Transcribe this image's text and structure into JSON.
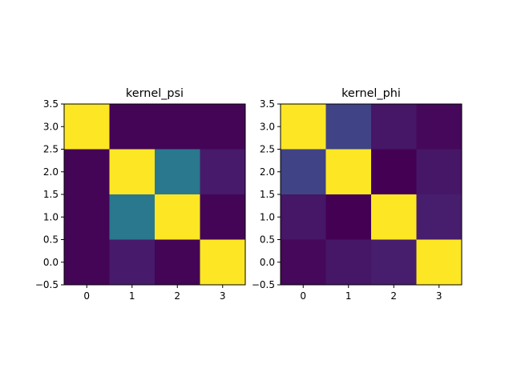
{
  "chart_data": [
    {
      "type": "heatmap",
      "title": "kernel_psi",
      "colormap": "viridis",
      "value_range": [
        0,
        1
      ],
      "x_ticks": [
        "0",
        "1",
        "2",
        "3"
      ],
      "y_ticks": [
        "−0.5",
        "0.0",
        "0.5",
        "1.0",
        "1.5",
        "2.0",
        "2.5",
        "3.0",
        "3.5"
      ],
      "xlim": [
        -0.5,
        3.5
      ],
      "ylim": [
        3.5,
        -0.5
      ],
      "values": [
        [
          1.0,
          0.01,
          0.01,
          0.01
        ],
        [
          0.01,
          1.0,
          0.4,
          0.07
        ],
        [
          0.01,
          0.4,
          1.0,
          0.01
        ],
        [
          0.01,
          0.07,
          0.01,
          1.0
        ]
      ]
    },
    {
      "type": "heatmap",
      "title": "kernel_phi",
      "colormap": "viridis",
      "value_range": [
        0,
        1
      ],
      "x_ticks": [
        "0",
        "1",
        "2",
        "3"
      ],
      "y_ticks": [
        "−0.5",
        "0.0",
        "0.5",
        "1.0",
        "1.5",
        "2.0",
        "2.5",
        "3.0",
        "3.5"
      ],
      "xlim": [
        -0.5,
        3.5
      ],
      "ylim": [
        3.5,
        -0.5
      ],
      "values": [
        [
          1.0,
          0.2,
          0.06,
          0.02
        ],
        [
          0.2,
          1.0,
          0.0,
          0.06
        ],
        [
          0.06,
          0.0,
          1.0,
          0.08
        ],
        [
          0.02,
          0.06,
          0.08,
          1.0
        ]
      ]
    }
  ]
}
